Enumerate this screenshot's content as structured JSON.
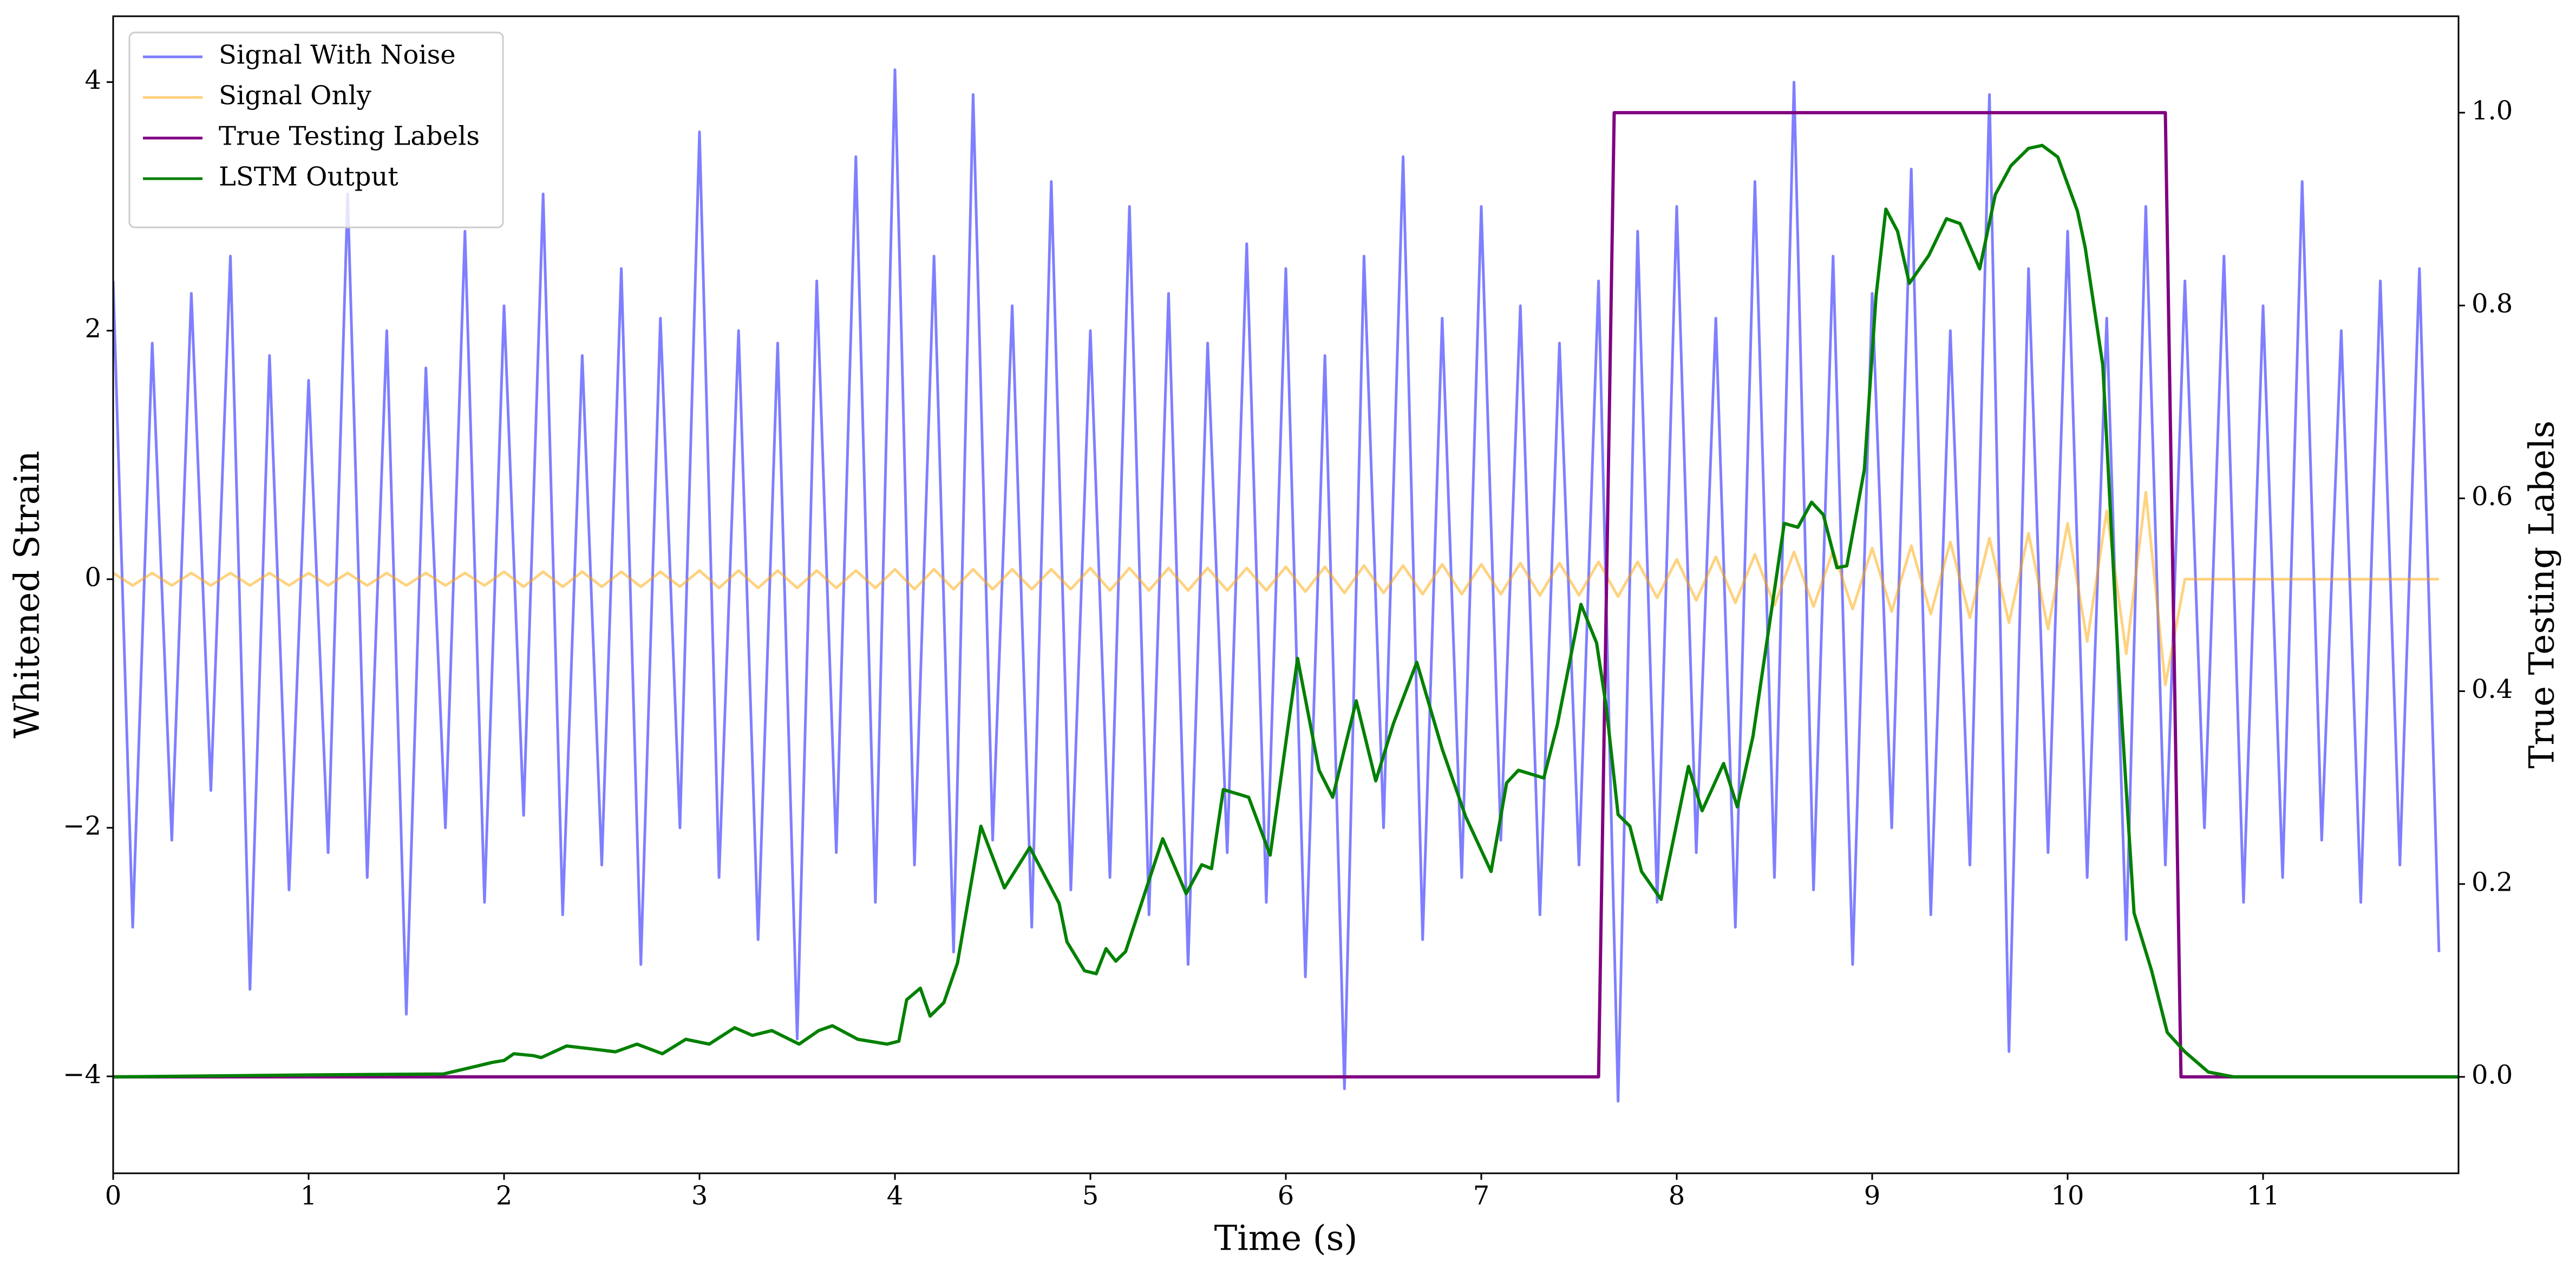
{
  "chart_data": {
    "type": "line",
    "xlabel": "Time (s)",
    "ylabel": "Whitened Strain",
    "y2label": "True Testing Labels",
    "legend": "upper left",
    "alpha": 0.5,
    "xlim": [
      0,
      12
    ],
    "ylim": [
      -4.78,
      4.53
    ],
    "y2lim": [
      -0.1,
      1.1
    ],
    "xticks": [
      0,
      1,
      2,
      3,
      4,
      5,
      6,
      7,
      8,
      9,
      10,
      11
    ],
    "yticks": [
      {
        "value": -4,
        "label": "−4"
      },
      {
        "value": -2,
        "label": "−2"
      },
      0,
      2,
      4
    ],
    "y2ticks": [
      {
        "value": 0,
        "label": "0.0"
      },
      0.2,
      0.4,
      0.6,
      0.8,
      {
        "value": 1,
        "label": "1.0"
      }
    ],
    "x": [
      0,
      0.1,
      0.2,
      0.3,
      0.4,
      0.5,
      0.6,
      0.7,
      0.8,
      0.9,
      1,
      1.1,
      1.2,
      1.3,
      1.4,
      1.5,
      1.6,
      1.7,
      1.8,
      1.9,
      2,
      2.1,
      2.2,
      2.3,
      2.4,
      2.5,
      2.6,
      2.7,
      2.8,
      2.9,
      3,
      3.1,
      3.2,
      3.3,
      3.4,
      3.5,
      3.6,
      3.7,
      3.8,
      3.9,
      4,
      4.1,
      4.2,
      4.3,
      4.4,
      4.5,
      4.6,
      4.7,
      4.8,
      4.9,
      5,
      5.1,
      5.2,
      5.3,
      5.4,
      5.5,
      5.6,
      5.7,
      5.8,
      5.9,
      6,
      6.1,
      6.2,
      6.3,
      6.4,
      6.5,
      6.6,
      6.7,
      6.8,
      6.9,
      7,
      7.1,
      7.2,
      7.3,
      7.4,
      7.5,
      7.6,
      7.7,
      7.8,
      7.9,
      8,
      8.1,
      8.2,
      8.3,
      8.4,
      8.5,
      8.6,
      8.7,
      8.8,
      8.9,
      9,
      9.1,
      9.2,
      9.3,
      9.4,
      9.5,
      9.6,
      9.7,
      9.8,
      9.9,
      10,
      10.1,
      10.2,
      10.3,
      10.4,
      10.5,
      10.6,
      10.7,
      10.8,
      10.9,
      11,
      11.1,
      11.2,
      11.3,
      11.4,
      11.5,
      11.6,
      11.7,
      11.8,
      11.9
    ],
    "series": [
      {
        "name": "Signal With Noise",
        "color": "#0000ff",
        "values": [
          2.4,
          -2.8,
          1.9,
          -2.1,
          2.3,
          -1.7,
          2.6,
          -3.3,
          1.8,
          -2.5,
          1.6,
          -2.2,
          3.1,
          -2.4,
          2.0,
          -3.5,
          1.7,
          -2.0,
          2.8,
          -2.6,
          2.2,
          -1.9,
          3.1,
          -2.7,
          1.8,
          -2.3,
          2.5,
          -3.1,
          2.1,
          -2.0,
          3.6,
          -2.4,
          2.0,
          -2.9,
          1.9,
          -3.7,
          2.4,
          -2.2,
          3.4,
          -2.6,
          4.1,
          -2.3,
          2.6,
          -3.0,
          3.9,
          -2.1,
          2.2,
          -2.8,
          3.2,
          -2.5,
          2.0,
          -2.4,
          3.0,
          -2.7,
          2.3,
          -3.1,
          1.9,
          -2.2,
          2.7,
          -2.6,
          2.5,
          -3.2,
          1.8,
          -4.1,
          2.6,
          -2.0,
          3.4,
          -2.9,
          2.1,
          -2.4,
          3.0,
          -2.1,
          2.2,
          -2.7,
          1.9,
          -2.3,
          2.4,
          -4.2,
          2.8,
          -2.6,
          3.0,
          -2.2,
          2.1,
          -2.8,
          3.2,
          -2.4,
          4.0,
          -2.5,
          2.6,
          -3.1,
          2.3,
          -2.0,
          3.3,
          -2.7,
          2.0,
          -2.3,
          3.9,
          -3.8,
          2.5,
          -2.2,
          2.8,
          -2.4,
          2.1,
          -2.9,
          3.0,
          -2.3,
          2.4,
          -2.0,
          2.6,
          -2.6,
          2.2,
          -2.4,
          3.2,
          -2.1,
          2.0,
          -2.6,
          2.4,
          -2.3,
          2.5,
          -3.0
        ]
      },
      {
        "name": "Signal Only",
        "color": "#ffa500",
        "values": [
          0.05,
          -0.05,
          0.05,
          -0.05,
          0.05,
          -0.05,
          0.05,
          -0.05,
          0.05,
          -0.05,
          0.05,
          -0.05,
          0.05,
          -0.05,
          0.05,
          -0.05,
          0.05,
          -0.05,
          0.05,
          -0.05,
          0.06,
          -0.06,
          0.06,
          -0.06,
          0.06,
          -0.06,
          0.06,
          -0.06,
          0.06,
          -0.06,
          0.07,
          -0.07,
          0.07,
          -0.07,
          0.07,
          -0.07,
          0.07,
          -0.07,
          0.07,
          -0.07,
          0.08,
          -0.08,
          0.08,
          -0.08,
          0.08,
          -0.08,
          0.08,
          -0.08,
          0.08,
          -0.08,
          0.09,
          -0.09,
          0.09,
          -0.09,
          0.09,
          -0.09,
          0.09,
          -0.09,
          0.09,
          -0.09,
          0.1,
          -0.1,
          0.1,
          -0.11,
          0.11,
          -0.11,
          0.11,
          -0.12,
          0.12,
          -0.12,
          0.12,
          -0.12,
          0.13,
          -0.13,
          0.13,
          -0.13,
          0.14,
          -0.14,
          0.14,
          -0.15,
          0.16,
          -0.17,
          0.18,
          -0.19,
          0.2,
          -0.21,
          0.22,
          -0.22,
          0.23,
          -0.24,
          0.25,
          -0.26,
          0.27,
          -0.28,
          0.3,
          -0.31,
          0.33,
          -0.35,
          0.37,
          -0.4,
          0.45,
          -0.5,
          0.55,
          -0.6,
          0.7,
          -0.85,
          0,
          0,
          0,
          0,
          0,
          0,
          0,
          0,
          0,
          0,
          0,
          0,
          0,
          0
        ]
      },
      {
        "name": "True Testing Labels",
        "color": "#800080",
        "axis": "y2",
        "x": [
          0,
          7.6,
          7.68,
          10.5,
          10.58,
          12
        ],
        "values": [
          0,
          0,
          1,
          1,
          0,
          0
        ]
      },
      {
        "name": "LSTM Output",
        "color": "#008000",
        "axis": "y2",
        "x": [
          0,
          1.0,
          1.69,
          1.94,
          2.0,
          2.05,
          2.15,
          2.19,
          2.32,
          2.45,
          2.57,
          2.68,
          2.81,
          2.93,
          3.05,
          3.18,
          3.27,
          3.37,
          3.51,
          3.61,
          3.68,
          3.81,
          3.96,
          4.02,
          4.06,
          4.13,
          4.18,
          4.25,
          4.32,
          4.44,
          4.56,
          4.69,
          4.84,
          4.88,
          4.97,
          5.03,
          5.08,
          5.13,
          5.18,
          5.37,
          5.49,
          5.57,
          5.62,
          5.68,
          5.81,
          5.92,
          6.06,
          6.17,
          6.24,
          6.36,
          6.46,
          6.55,
          6.67,
          6.8,
          6.92,
          7.05,
          7.13,
          7.19,
          7.32,
          7.39,
          7.51,
          7.59,
          7.64,
          7.7,
          7.76,
          7.82,
          7.92,
          8.06,
          8.13,
          8.24,
          8.31,
          8.39,
          8.55,
          8.62,
          8.69,
          8.75,
          8.82,
          8.87,
          8.96,
          9.02,
          9.07,
          9.13,
          9.19,
          9.29,
          9.38,
          9.45,
          9.55,
          9.63,
          9.71,
          9.8,
          9.87,
          9.95,
          10.05,
          10.09,
          10.18,
          10.26,
          10.34,
          10.43,
          10.51,
          10.6,
          10.72,
          10.85,
          12
        ],
        "values": [
          0,
          0.002,
          0.003,
          0.015,
          0.017,
          0.024,
          0.022,
          0.02,
          0.032,
          0.029,
          0.026,
          0.034,
          0.024,
          0.039,
          0.034,
          0.051,
          0.043,
          0.048,
          0.034,
          0.048,
          0.053,
          0.039,
          0.034,
          0.037,
          0.08,
          0.092,
          0.063,
          0.077,
          0.118,
          0.26,
          0.196,
          0.238,
          0.18,
          0.14,
          0.11,
          0.107,
          0.133,
          0.12,
          0.13,
          0.247,
          0.19,
          0.22,
          0.216,
          0.298,
          0.29,
          0.23,
          0.434,
          0.318,
          0.29,
          0.39,
          0.307,
          0.366,
          0.43,
          0.34,
          0.27,
          0.213,
          0.305,
          0.318,
          0.31,
          0.366,
          0.49,
          0.45,
          0.383,
          0.272,
          0.26,
          0.213,
          0.184,
          0.322,
          0.276,
          0.325,
          0.28,
          0.353,
          0.574,
          0.57,
          0.596,
          0.583,
          0.528,
          0.53,
          0.63,
          0.81,
          0.9,
          0.877,
          0.823,
          0.852,
          0.89,
          0.885,
          0.838,
          0.915,
          0.945,
          0.963,
          0.966,
          0.954,
          0.898,
          0.86,
          0.738,
          0.426,
          0.17,
          0.11,
          0.046,
          0.026,
          0.005,
          0,
          0
        ]
      }
    ]
  }
}
